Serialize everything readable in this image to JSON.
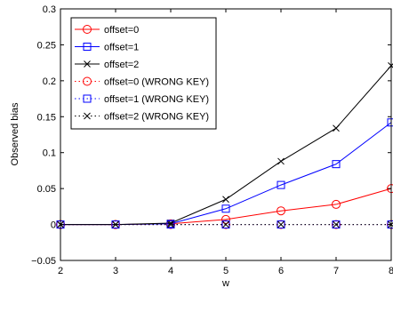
{
  "chart_data": {
    "type": "line",
    "title": "",
    "xlabel": "w",
    "ylabel": "Observed bias",
    "xlim": [
      2,
      8
    ],
    "ylim": [
      -0.05,
      0.3
    ],
    "xticks": [
      "2",
      "3",
      "4",
      "5",
      "6",
      "7",
      "8"
    ],
    "yticks": [
      "−0.05",
      "0",
      "0.05",
      "0.1",
      "0.15",
      "0.2",
      "0.25",
      "0.3"
    ],
    "grid": false,
    "legend_position": "top-left",
    "x": [
      2,
      3,
      4,
      5,
      6,
      7,
      8
    ],
    "series": [
      {
        "name": "offset=0",
        "color": "#ff0000",
        "marker": "circle",
        "line": "solid",
        "values": [
          0,
          0,
          0.001,
          0.007,
          0.019,
          0.028,
          0.05
        ]
      },
      {
        "name": "offset=1",
        "color": "#0000ff",
        "marker": "square",
        "line": "solid",
        "values": [
          0,
          0,
          0.001,
          0.022,
          0.055,
          0.084,
          0.142
        ]
      },
      {
        "name": "offset=2",
        "color": "#000000",
        "marker": "x",
        "line": "solid",
        "values": [
          0,
          0,
          0.002,
          0.035,
          0.088,
          0.134,
          0.221
        ]
      },
      {
        "name": "offset=0 (WRONG KEY)",
        "color": "#ff0000",
        "marker": "circle",
        "line": "dotted",
        "values": [
          0,
          0,
          0,
          0,
          0,
          0,
          0
        ]
      },
      {
        "name": "offset=1 (WRONG KEY)",
        "color": "#0000ff",
        "marker": "square",
        "line": "dotted",
        "values": [
          0,
          0,
          0,
          0,
          0,
          0,
          0
        ]
      },
      {
        "name": "offset=2 (WRONG KEY)",
        "color": "#000000",
        "marker": "x",
        "line": "dotted",
        "values": [
          0,
          0,
          0,
          0,
          0,
          0,
          0
        ]
      }
    ]
  }
}
